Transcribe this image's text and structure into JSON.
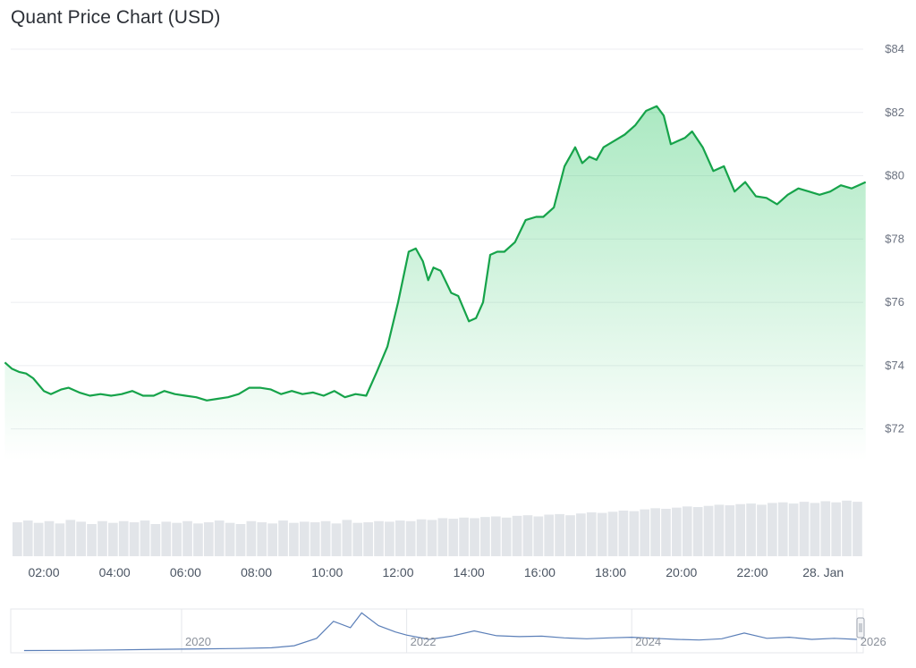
{
  "title": "Quant Price Chart (USD)",
  "chart_data": {
    "type": "area",
    "title": "Quant Price Chart (USD)",
    "currency": "USD",
    "xlabel": "",
    "ylabel": "",
    "ylim": [
      71,
      84
    ],
    "grid": true,
    "y_ticks": [
      "$84",
      "$82",
      "$80",
      "$78",
      "$76",
      "$74",
      "$72"
    ],
    "y_tick_values": [
      84,
      82,
      80,
      78,
      76,
      74,
      72
    ],
    "x_ticks": [
      "02:00",
      "04:00",
      "06:00",
      "08:00",
      "10:00",
      "12:00",
      "14:00",
      "16:00",
      "18:00",
      "20:00",
      "22:00",
      "28. Jan"
    ],
    "x_tick_hours": [
      2,
      4,
      6,
      8,
      10,
      12,
      14,
      16,
      18,
      20,
      22,
      24
    ],
    "series": [
      {
        "color": "#16a34a",
        "x_hours": [
          0.9,
          1.1,
          1.3,
          1.5,
          1.7,
          2.0,
          2.2,
          2.5,
          2.7,
          3.0,
          3.3,
          3.6,
          3.9,
          4.2,
          4.5,
          4.8,
          5.1,
          5.4,
          5.7,
          6.0,
          6.3,
          6.6,
          6.9,
          7.2,
          7.5,
          7.8,
          8.1,
          8.4,
          8.7,
          9.0,
          9.3,
          9.6,
          9.9,
          10.2,
          10.5,
          10.8,
          11.1,
          11.4,
          11.7,
          12.0,
          12.3,
          12.5,
          12.7,
          12.85,
          13.0,
          13.2,
          13.5,
          13.7,
          14.0,
          14.2,
          14.4,
          14.6,
          14.8,
          15.0,
          15.3,
          15.6,
          15.9,
          16.1,
          16.4,
          16.7,
          17.0,
          17.2,
          17.4,
          17.6,
          17.8,
          18.1,
          18.4,
          18.7,
          19.0,
          19.3,
          19.5,
          19.7,
          19.9,
          20.1,
          20.3,
          20.6,
          20.9,
          21.2,
          21.5,
          21.8,
          22.1,
          22.4,
          22.7,
          23.0,
          23.3,
          23.6,
          23.9,
          24.2,
          24.5,
          24.8,
          25.0,
          25.2
        ],
        "values": [
          74.1,
          73.9,
          73.8,
          73.75,
          73.6,
          73.2,
          73.1,
          73.25,
          73.3,
          73.15,
          73.05,
          73.1,
          73.05,
          73.1,
          73.2,
          73.05,
          73.05,
          73.2,
          73.1,
          73.05,
          73.0,
          72.9,
          72.95,
          73.0,
          73.1,
          73.3,
          73.3,
          73.25,
          73.1,
          73.2,
          73.1,
          73.15,
          73.05,
          73.2,
          73.0,
          73.1,
          73.05,
          73.8,
          74.6,
          76.0,
          77.6,
          77.7,
          77.3,
          76.7,
          77.1,
          77.0,
          76.3,
          76.2,
          75.4,
          75.5,
          76.0,
          77.5,
          77.6,
          77.6,
          77.9,
          78.6,
          78.7,
          78.7,
          79.0,
          80.3,
          80.9,
          80.4,
          80.6,
          80.5,
          80.9,
          81.1,
          81.3,
          81.6,
          82.05,
          82.2,
          81.9,
          81.0,
          81.1,
          81.2,
          81.4,
          80.9,
          80.15,
          80.3,
          79.5,
          79.8,
          79.35,
          79.3,
          79.1,
          79.4,
          79.6,
          79.5,
          79.4,
          79.5,
          79.7,
          79.6,
          79.7,
          79.8
        ]
      }
    ],
    "volume": {
      "values": [
        0.58,
        0.61,
        0.57,
        0.6,
        0.56,
        0.62,
        0.59,
        0.55,
        0.6,
        0.57,
        0.6,
        0.58,
        0.61,
        0.55,
        0.59,
        0.57,
        0.6,
        0.56,
        0.58,
        0.61,
        0.57,
        0.55,
        0.6,
        0.58,
        0.56,
        0.61,
        0.57,
        0.59,
        0.58,
        0.6,
        0.56,
        0.62,
        0.57,
        0.58,
        0.6,
        0.59,
        0.61,
        0.6,
        0.63,
        0.62,
        0.65,
        0.64,
        0.66,
        0.65,
        0.67,
        0.68,
        0.66,
        0.69,
        0.7,
        0.68,
        0.71,
        0.72,
        0.7,
        0.73,
        0.75,
        0.74,
        0.76,
        0.78,
        0.77,
        0.8,
        0.82,
        0.81,
        0.83,
        0.85,
        0.84,
        0.86,
        0.88,
        0.87,
        0.89,
        0.9,
        0.88,
        0.91,
        0.92,
        0.9,
        0.93,
        0.91,
        0.94,
        0.92,
        0.95,
        0.93
      ]
    },
    "navigator": {
      "x_ticks": [
        "2020",
        "2022",
        "2024",
        "2026"
      ],
      "x_tick_years": [
        2020,
        2022,
        2024,
        2026
      ],
      "x_years": [
        2018.6,
        2019.0,
        2019.4,
        2019.8,
        2020.2,
        2020.5,
        2020.8,
        2021.0,
        2021.2,
        2021.35,
        2021.5,
        2021.6,
        2021.75,
        2021.9,
        2022.0,
        2022.2,
        2022.4,
        2022.6,
        2022.8,
        2023.0,
        2023.2,
        2023.4,
        2023.6,
        2023.8,
        2024.0,
        2024.2,
        2024.4,
        2024.6,
        2024.8,
        2025.0,
        2025.2,
        2025.4,
        2025.6,
        2025.8,
        2026.0
      ],
      "values": [
        2,
        3,
        5,
        8,
        10,
        12,
        15,
        25,
        60,
        140,
        110,
        180,
        120,
        90,
        75,
        55,
        70,
        95,
        72,
        68,
        70,
        62,
        58,
        62,
        65,
        60,
        55,
        52,
        58,
        85,
        60,
        65,
        55,
        60,
        55
      ]
    }
  }
}
